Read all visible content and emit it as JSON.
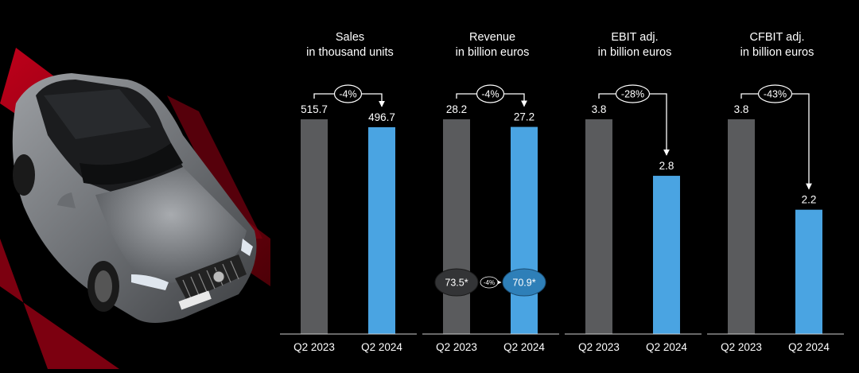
{
  "colors": {
    "background": "#000000",
    "bar_2023": "#5a5b5d",
    "bar_2024": "#4aa4e2",
    "text": "#ffffff",
    "accent_red": "#c2001a"
  },
  "chart_data": [
    {
      "type": "bar",
      "title": "Sales",
      "subtitle": "in thousand units",
      "categories": [
        "Q2 2023",
        "Q2 2024"
      ],
      "values": [
        515.7,
        496.7
      ],
      "value_labels": [
        "515.7",
        "496.7"
      ],
      "change_label": "-4%"
    },
    {
      "type": "bar",
      "title": "Revenue",
      "subtitle": "in billion euros",
      "categories": [
        "Q2 2023",
        "Q2 2024"
      ],
      "values": [
        28.2,
        27.2
      ],
      "value_labels": [
        "28.2",
        "27.2"
      ],
      "change_label": "-4%",
      "inset": {
        "values": [
          73.5,
          70.9
        ],
        "labels": [
          "73.5*",
          "70.9*"
        ],
        "change_label": "-4%"
      }
    },
    {
      "type": "bar",
      "title": "EBIT adj.",
      "subtitle": "in billion euros",
      "categories": [
        "Q2 2023",
        "Q2 2024"
      ],
      "values": [
        3.8,
        2.8
      ],
      "value_labels": [
        "3.8",
        "2.8"
      ],
      "change_label": "-28%"
    },
    {
      "type": "bar",
      "title": "CFBIT adj.",
      "subtitle": "in billion euros",
      "categories": [
        "Q2 2023",
        "Q2 2024"
      ],
      "values": [
        3.8,
        2.2
      ],
      "value_labels": [
        "3.8",
        "2.2"
      ],
      "change_label": "-43%"
    }
  ]
}
